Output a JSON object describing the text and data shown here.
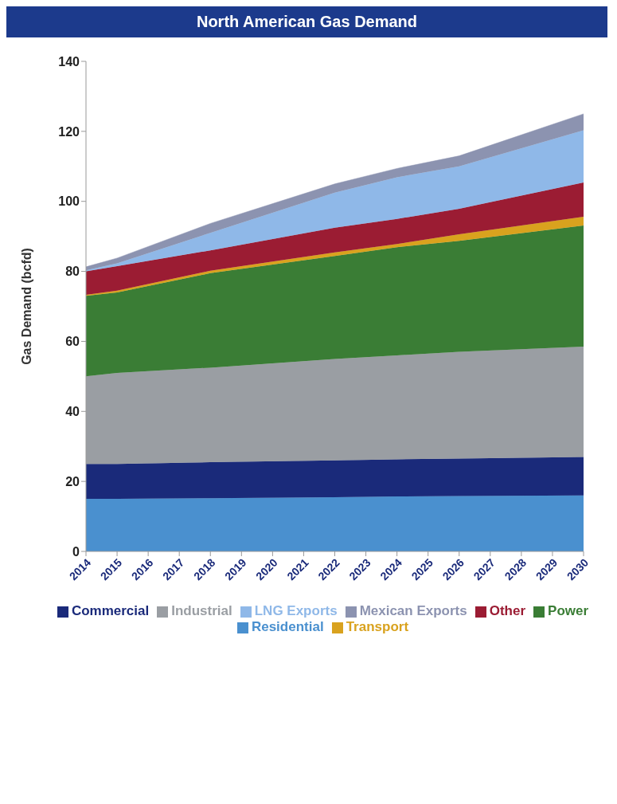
{
  "chart_data": {
    "type": "area",
    "stacked": true,
    "title": "North American Gas Demand",
    "ylabel": "Gas Demand (bcfd)",
    "x": [
      2014,
      2015,
      2018,
      2022,
      2024,
      2026,
      2030
    ],
    "xlim": [
      2014,
      2030
    ],
    "xticks": [
      2014,
      2015,
      2016,
      2017,
      2018,
      2019,
      2020,
      2021,
      2022,
      2023,
      2024,
      2025,
      2026,
      2027,
      2028,
      2029,
      2030
    ],
    "ylim": [
      0,
      140
    ],
    "yticks": [
      0,
      20,
      40,
      60,
      80,
      100,
      120,
      140
    ],
    "grid": false,
    "legend": "bottom",
    "series": [
      {
        "name": "Residential",
        "color": "#4a90cf",
        "values": [
          15,
          15,
          15.2,
          15.5,
          15.7,
          15.8,
          16
        ]
      },
      {
        "name": "Commercial",
        "color": "#1a2a7a",
        "values": [
          10,
          10,
          10.3,
          10.5,
          10.6,
          10.7,
          11
        ]
      },
      {
        "name": "Industrial",
        "color": "#9a9ea3",
        "values": [
          25,
          26,
          27,
          29,
          29.7,
          30.5,
          31.5
        ]
      },
      {
        "name": "Power",
        "color": "#3a7d35",
        "values": [
          23,
          23,
          27,
          29.4,
          30.9,
          31.7,
          34.6
        ]
      },
      {
        "name": "Transport",
        "color": "#d9a21e",
        "values": [
          0.3,
          0.5,
          0.7,
          1,
          0.9,
          1.9,
          2.5
        ]
      },
      {
        "name": "Other",
        "color": "#9b1c33",
        "values": [
          6.7,
          7,
          5.8,
          7.1,
          7.2,
          7.3,
          9.8
        ]
      },
      {
        "name": "LNG Exports",
        "color": "#8fb8e8",
        "values": [
          0.3,
          0.8,
          5,
          10,
          11.9,
          12.1,
          14.9
        ]
      },
      {
        "name": "Mexican Exports",
        "color": "#8c93b0",
        "values": [
          1,
          1.5,
          2.7,
          2.5,
          2.5,
          3,
          4.7
        ]
      }
    ]
  }
}
